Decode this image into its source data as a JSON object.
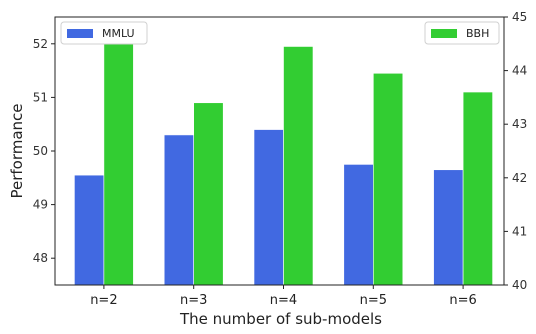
{
  "chart_data": {
    "type": "bar",
    "categories": [
      "n=2",
      "n=3",
      "n=4",
      "n=5",
      "n=6"
    ],
    "xlabel": "The number of sub-models",
    "ylabel": "Performance",
    "series": [
      {
        "name": "MMLU",
        "axis": "left",
        "color": "#4169e1",
        "values": [
          49.55,
          50.3,
          50.4,
          49.75,
          49.65
        ]
      },
      {
        "name": "BBH",
        "axis": "right",
        "color": "#32cd32",
        "values": [
          44.55,
          43.4,
          44.45,
          43.95,
          43.6
        ]
      }
    ],
    "ylim_left": [
      47.5,
      52.5
    ],
    "yticks_left": [
      48,
      49,
      50,
      51,
      52
    ],
    "ylim_right": [
      40,
      45
    ],
    "yticks_right": [
      40,
      41,
      42,
      43,
      44,
      45
    ],
    "grid": false,
    "legend": [
      {
        "series": "MMLU",
        "placement": "top-left"
      },
      {
        "series": "BBH",
        "placement": "top-right"
      }
    ]
  }
}
